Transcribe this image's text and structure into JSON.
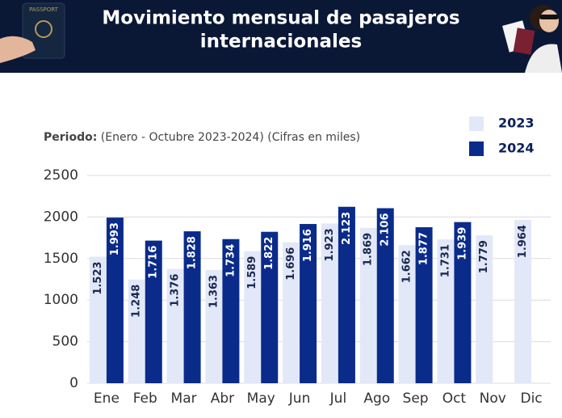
{
  "chart_data": {
    "type": "bar",
    "title": [
      "Movimiento mensual de pasajeros",
      "internacionales"
    ],
    "subtitle_label": "Periodo:",
    "subtitle": "(Enero - Octubre 2023-2024) (Cifras en miles)",
    "categories": [
      "Ene",
      "Feb",
      "Mar",
      "Abr",
      "May",
      "Jun",
      "Jul",
      "Ago",
      "Sep",
      "Oct",
      "Nov",
      "Dic"
    ],
    "series": [
      {
        "name": "2023",
        "color": "#e2e8f8",
        "values": [
          1523,
          1248,
          1376,
          1363,
          1589,
          1696,
          1923,
          1869,
          1662,
          1731,
          1779,
          1964
        ],
        "value_labels": [
          "1.523",
          "1.248",
          "1.376",
          "1.363",
          "1.589",
          "1.696",
          "1.923",
          "1.869",
          "1.662",
          "1.731",
          "1.779",
          "1.964"
        ]
      },
      {
        "name": "2024",
        "color": "#0a2b8a",
        "values": [
          1993,
          1716,
          1828,
          1734,
          1822,
          1916,
          2123,
          2106,
          1877,
          1939,
          null,
          null
        ],
        "value_labels": [
          "1.993",
          "1.716",
          "1.828",
          "1.734",
          "1.822",
          "1.916",
          "2.123",
          "2.106",
          "1.877",
          "1.939",
          null,
          null
        ]
      }
    ],
    "ylim": [
      0,
      2500
    ],
    "yticks": [
      0,
      500,
      1000,
      1500,
      2000,
      2500
    ],
    "grid": true,
    "legend": "top-right"
  }
}
